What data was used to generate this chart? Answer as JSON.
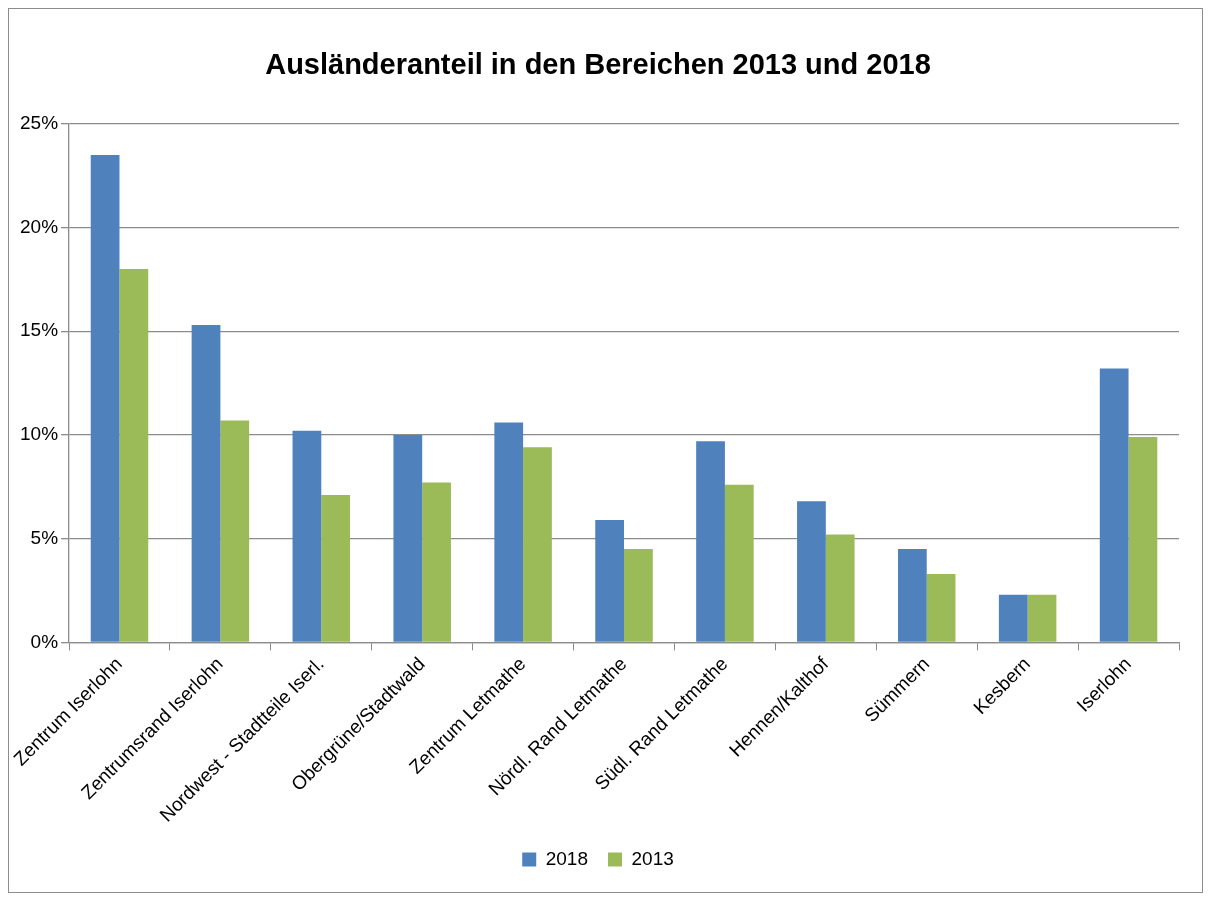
{
  "chart_data": {
    "type": "bar",
    "title": "Ausländeranteil in den Bereichen 2013 und 2018",
    "categories": [
      "Zentrum Iserlohn",
      "Zentrumsrand Iserlohn",
      "Nordwest - Stadtteile Iserl.",
      "Obergrüne/Stadtwald",
      "Zentrum Letmathe",
      "Nördl. Rand Letmathe",
      "Südl. Rand Letmathe",
      "Hennen/Kalthof",
      "Sümmern",
      "Kesbern",
      "Iserlohn"
    ],
    "series": [
      {
        "name": "2018",
        "color": "#4f81bd",
        "values": [
          23.5,
          15.3,
          10.2,
          10.0,
          10.6,
          5.9,
          9.7,
          6.8,
          4.5,
          2.3,
          13.2
        ]
      },
      {
        "name": "2013",
        "color": "#9bbb59",
        "values": [
          18.0,
          10.7,
          7.1,
          7.7,
          9.4,
          4.5,
          7.6,
          5.2,
          3.3,
          2.3,
          9.9
        ]
      }
    ],
    "ylim": [
      0,
      25
    ],
    "yticks": [
      {
        "value": 0,
        "label": "0%"
      },
      {
        "value": 5,
        "label": "5%"
      },
      {
        "value": 10,
        "label": "10%"
      },
      {
        "value": 15,
        "label": "15%"
      },
      {
        "value": 20,
        "label": "20%"
      },
      {
        "value": 25,
        "label": "25%"
      }
    ],
    "grid": "y",
    "legend": "bottom"
  }
}
